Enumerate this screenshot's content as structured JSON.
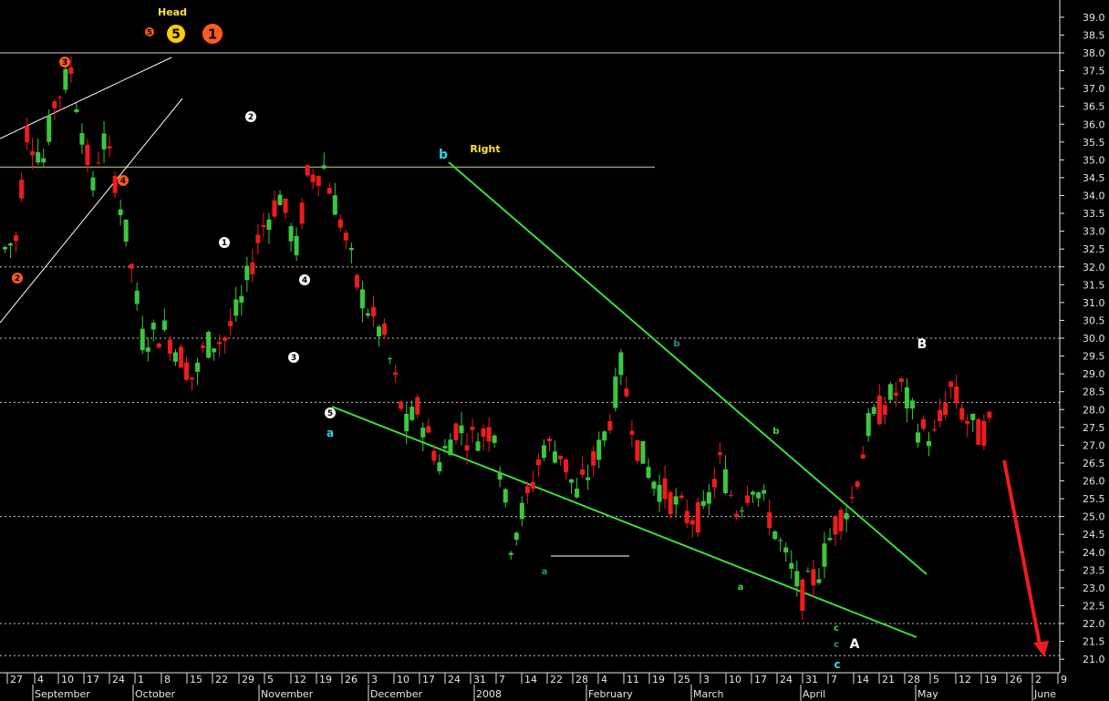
{
  "chart_data": {
    "type": "candlestick",
    "title": "",
    "ylim": [
      21.0,
      39.4
    ],
    "y_ticks": [
      "21.0",
      "21.5",
      "22.0",
      "22.5",
      "23.0",
      "23.5",
      "24.0",
      "24.5",
      "25.0",
      "25.5",
      "26.0",
      "26.5",
      "27.0",
      "27.5",
      "28.0",
      "28.5",
      "29.0",
      "29.5",
      "30.0",
      "30.5",
      "31.0",
      "31.5",
      "32.0",
      "32.5",
      "33.0",
      "33.5",
      "34.0",
      "34.5",
      "35.0",
      "35.5",
      "36.0",
      "36.5",
      "37.0",
      "37.5",
      "38.0",
      "38.5",
      "39.0"
    ],
    "x_ticks": [
      "27",
      "4",
      "10",
      "17",
      "24",
      "1",
      "8",
      "15",
      "22",
      "29",
      "5",
      "12",
      "19",
      "26",
      "3",
      "10",
      "17",
      "24",
      "31",
      "7",
      "14",
      "22",
      "28",
      "4",
      "11",
      "19",
      "25",
      "3",
      "10",
      "17",
      "24",
      "31",
      "7",
      "14",
      "21",
      "28",
      "5",
      "12",
      "19",
      "26",
      "2",
      "9"
    ],
    "months": [
      "September",
      "October",
      "November",
      "December",
      "2008",
      "February",
      "March",
      "April",
      "May",
      "June"
    ],
    "reference_lines": [
      {
        "type": "solid",
        "color": "#e6c4e6",
        "value": 38.0
      },
      {
        "type": "solid",
        "color": "#d8d870",
        "value": 34.8
      },
      {
        "type": "dashed",
        "color": "#c8c8c8",
        "value": 32.0
      },
      {
        "type": "dashed",
        "color": "#c8c8c8",
        "value": 30.0
      },
      {
        "type": "dashed",
        "color": "#c8c8c8",
        "value": 28.2
      },
      {
        "type": "dashed",
        "color": "#c8c8c8",
        "value": 25.0
      },
      {
        "type": "dashed",
        "color": "#c8c8c8",
        "value": 22.0
      },
      {
        "type": "dashed",
        "color": "#c8c8c8",
        "value": 21.1
      }
    ],
    "annotations": {
      "head": "Head",
      "right": "Right",
      "wave_big_A": "A",
      "wave_big_B": "B",
      "wave_a1": "a",
      "wave_b1": "b",
      "wave_c1": "c",
      "wave_a2": "a",
      "wave_b2": "b",
      "wave_c2": "c",
      "wave_b3": "b",
      "wave_a3": "a",
      "wave_c3": "c"
    },
    "wave_markers": [
      {
        "label": "5",
        "style": "orange-small",
        "x_index": 46,
        "value": 38.6
      },
      {
        "label": "5",
        "style": "yellow-large",
        "x_index": 54,
        "value": 38.6
      },
      {
        "label": "1",
        "style": "orange-large",
        "x_index": 66,
        "value": 38.6
      },
      {
        "label": "3",
        "style": "orange",
        "x_index": 19,
        "value": 37.9
      },
      {
        "label": "4",
        "style": "orange",
        "x_index": 38,
        "value": 34.5
      },
      {
        "label": "2",
        "style": "orange",
        "x_index": 5,
        "value": 31.8
      },
      {
        "label": "2",
        "style": "white",
        "x_index": 78,
        "value": 36.4
      },
      {
        "label": "1",
        "style": "white",
        "x_index": 70,
        "value": 32.8
      },
      {
        "label": "4",
        "style": "white",
        "x_index": 95,
        "value": 31.7
      },
      {
        "label": "3",
        "style": "white",
        "x_index": 91,
        "value": 29.9
      },
      {
        "label": "5",
        "style": "white",
        "x_index": 103,
        "value": 28.0
      }
    ],
    "ohlc_source": "estimated from visual"
  }
}
